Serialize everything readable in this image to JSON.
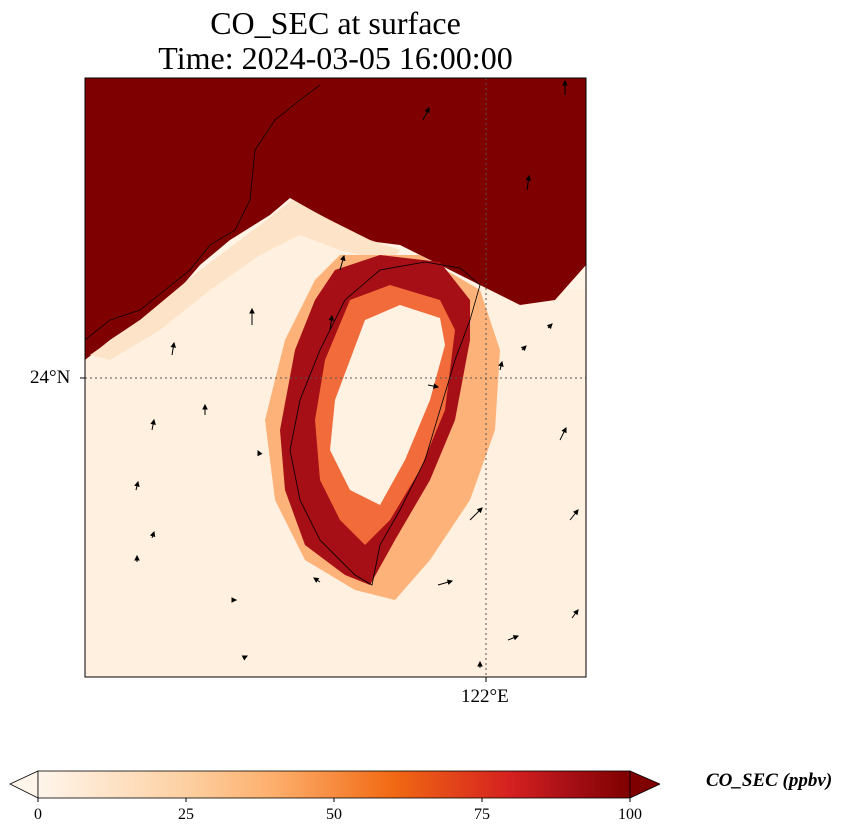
{
  "title": {
    "line1": "CO_SEC at surface",
    "line2": "Time: 2024-03-05 16:00:00"
  },
  "axes": {
    "lat_tick": "24°N",
    "lon_tick": "122°E"
  },
  "colorbar": {
    "label": "CO_SEC (ppbv)",
    "ticks": [
      "0",
      "25",
      "50",
      "75",
      "100"
    ],
    "min": 0,
    "max": 100,
    "extend": "both",
    "colormap": [
      "#fff5eb",
      "#fdd0a2",
      "#fdae6b",
      "#f16913",
      "#d62728",
      "#a50f15",
      "#7f0000"
    ]
  },
  "map": {
    "land_mainland_color": "#7f0000",
    "background_color": "#fff4e6",
    "gridlines": "dotted"
  }
}
